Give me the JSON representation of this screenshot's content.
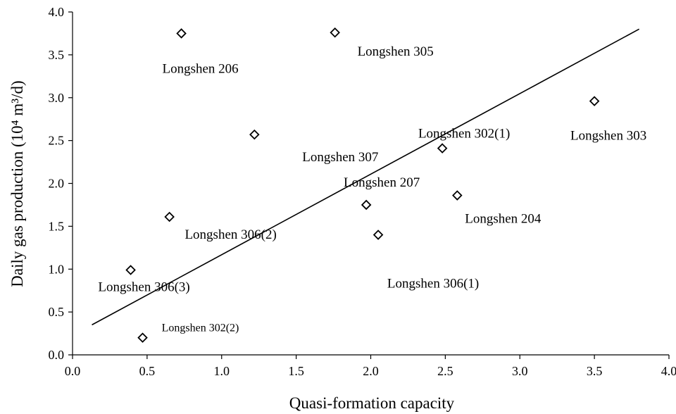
{
  "chart_data": {
    "type": "scatter",
    "xlabel": "Quasi-formation capacity",
    "ylabel": "Daily gas production (10⁴ m³/d)",
    "xlim": [
      0.0,
      4.0
    ],
    "ylim": [
      0.0,
      4.0
    ],
    "x_ticks": [
      "0.0",
      "0.5",
      "1.0",
      "1.5",
      "2.0",
      "2.5",
      "3.0",
      "3.5",
      "4.0"
    ],
    "y_ticks": [
      "0.0",
      "0.5",
      "1.0",
      "1.5",
      "2.0",
      "2.5",
      "3.0",
      "3.5",
      "4.0"
    ],
    "grid": false,
    "marker": "open-diamond",
    "points": [
      {
        "label": "Longshen 206",
        "x": 0.73,
        "y": 3.75
      },
      {
        "label": "Longshen 305",
        "x": 1.76,
        "y": 3.76
      },
      {
        "label": "Longshen 303",
        "x": 3.5,
        "y": 2.96
      },
      {
        "label": "Longshen 307",
        "x": 1.22,
        "y": 2.57
      },
      {
        "label": "Longshen 302(1)",
        "x": 2.48,
        "y": 2.41
      },
      {
        "label": "Longshen 207",
        "x": 1.97,
        "y": 1.75
      },
      {
        "label": "Longshen 204",
        "x": 2.58,
        "y": 1.86
      },
      {
        "label": "Longshen 306(1)",
        "x": 2.05,
        "y": 1.4
      },
      {
        "label": "Longshen 306(2)",
        "x": 0.65,
        "y": 1.61
      },
      {
        "label": "Longshen 306(3)",
        "x": 0.39,
        "y": 0.99
      },
      {
        "label": "Longshen 302(2)",
        "x": 0.47,
        "y": 0.2
      }
    ],
    "trendline": {
      "x": [
        0.13,
        3.8
      ],
      "y": [
        0.35,
        3.8
      ]
    }
  }
}
